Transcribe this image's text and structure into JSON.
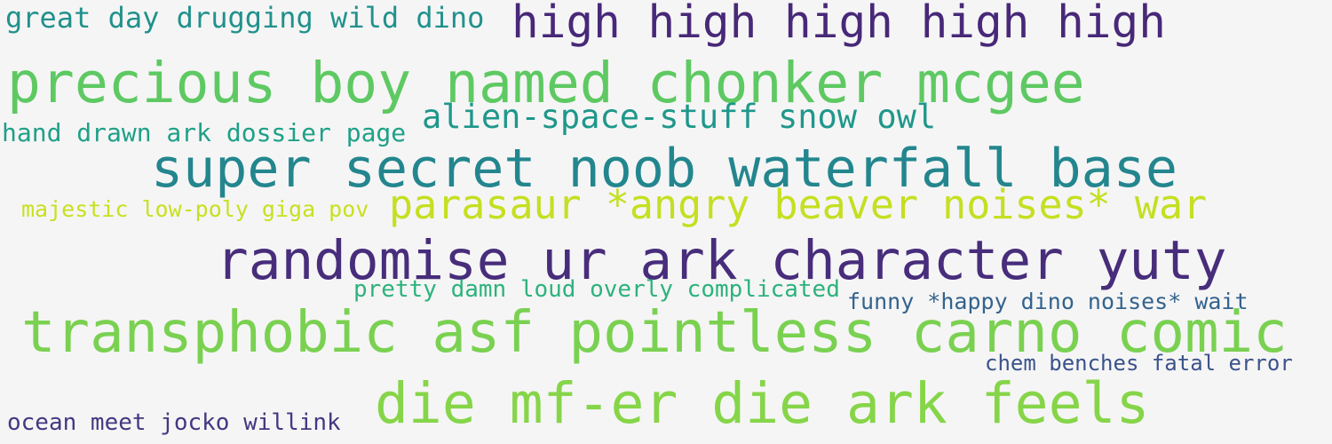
{
  "phrases": [
    {
      "text": "great day drugging wild dino",
      "color": "#21918c"
    },
    {
      "text": "high high high high high",
      "color": "#482878"
    },
    {
      "text": "precious boy named chonker mcgee",
      "color": "#5ec962"
    },
    {
      "text": "alien-space-stuff snow owl",
      "color": "#1f978b"
    },
    {
      "text": "hand drawn ark dossier page",
      "color": "#1fa088"
    },
    {
      "text": "super secret noob waterfall base",
      "color": "#23868e"
    },
    {
      "text": "majestic low-poly giga pov",
      "color": "#c8e020"
    },
    {
      "text": "parasaur *angry beaver noises* war",
      "color": "#c5df21"
    },
    {
      "text": "randomise ur ark character yuty",
      "color": "#472d7b"
    },
    {
      "text": "pretty damn loud overly complicated",
      "color": "#2db27d"
    },
    {
      "text": "funny *happy dino noises* wait",
      "color": "#33638d"
    },
    {
      "text": "transphobic asf pointless carno comic",
      "color": "#7ad151"
    },
    {
      "text": "chem benches fatal error",
      "color": "#3b528b"
    },
    {
      "text": "die mf-er die ark feels",
      "color": "#86d549"
    },
    {
      "text": "ocean meet jocko willink",
      "color": "#453781"
    }
  ]
}
